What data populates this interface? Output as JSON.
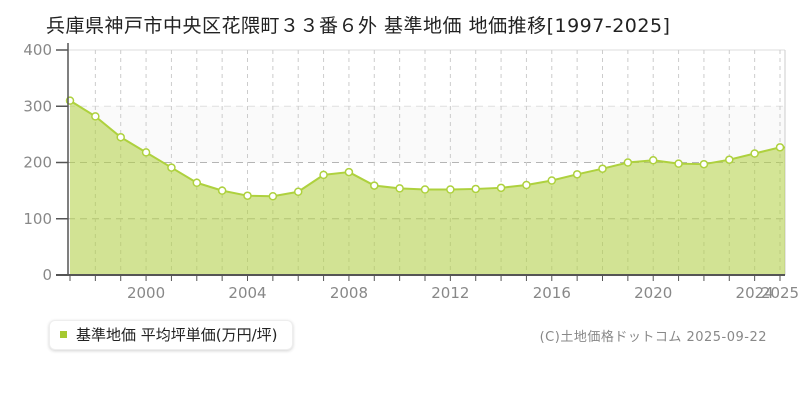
{
  "title": "兵庫県神戸市中央区花隈町３３番６外 基準地価 地価推移[1997-2025]",
  "legend": {
    "label": "基準地価 平均坪単価(万円/坪)",
    "swatch_color": "#a5c930"
  },
  "copyright": "(C)土地価格ドットコム 2025-09-22",
  "chart_data": {
    "type": "area",
    "title": "兵庫県神戸市中央区花隈町３３番６外 基準地価 地価推移[1997-2025]",
    "series_name": "基準地価 平均坪単価(万円/坪)",
    "x": [
      1997,
      1998,
      1999,
      2000,
      2001,
      2002,
      2003,
      2004,
      2005,
      2006,
      2007,
      2008,
      2009,
      2010,
      2011,
      2012,
      2013,
      2014,
      2015,
      2016,
      2017,
      2018,
      2019,
      2020,
      2021,
      2022,
      2023,
      2024,
      2025
    ],
    "values": [
      310,
      282,
      245,
      218,
      191,
      164,
      150,
      141,
      140,
      148,
      178,
      183,
      159,
      154,
      152,
      152,
      153,
      155,
      160,
      168,
      179,
      189,
      200,
      204,
      198,
      197,
      205,
      216,
      227
    ],
    "xlabel": "",
    "ylabel": "",
    "ylim": [
      0,
      400
    ],
    "yticks": [
      0,
      100,
      200,
      300,
      400
    ],
    "xtick_labels": [
      2000,
      2004,
      2008,
      2012,
      2016,
      2020,
      2024,
      2025
    ],
    "grid": true,
    "legend_position": "bottom-left",
    "style": {
      "line_color": "#aed13e",
      "fill_color": "#b1d040",
      "fill_opacity": 0.55,
      "marker_fill": "#ffffff",
      "axis_color": "#555555",
      "grid_color": "#cccccc",
      "grid_color_light": "#e0e0e0",
      "grid_color_dark": "#b5b5b5",
      "band_color": "#fafafa",
      "border_color": "#dddddd",
      "tick_label_color": "#888888"
    }
  }
}
